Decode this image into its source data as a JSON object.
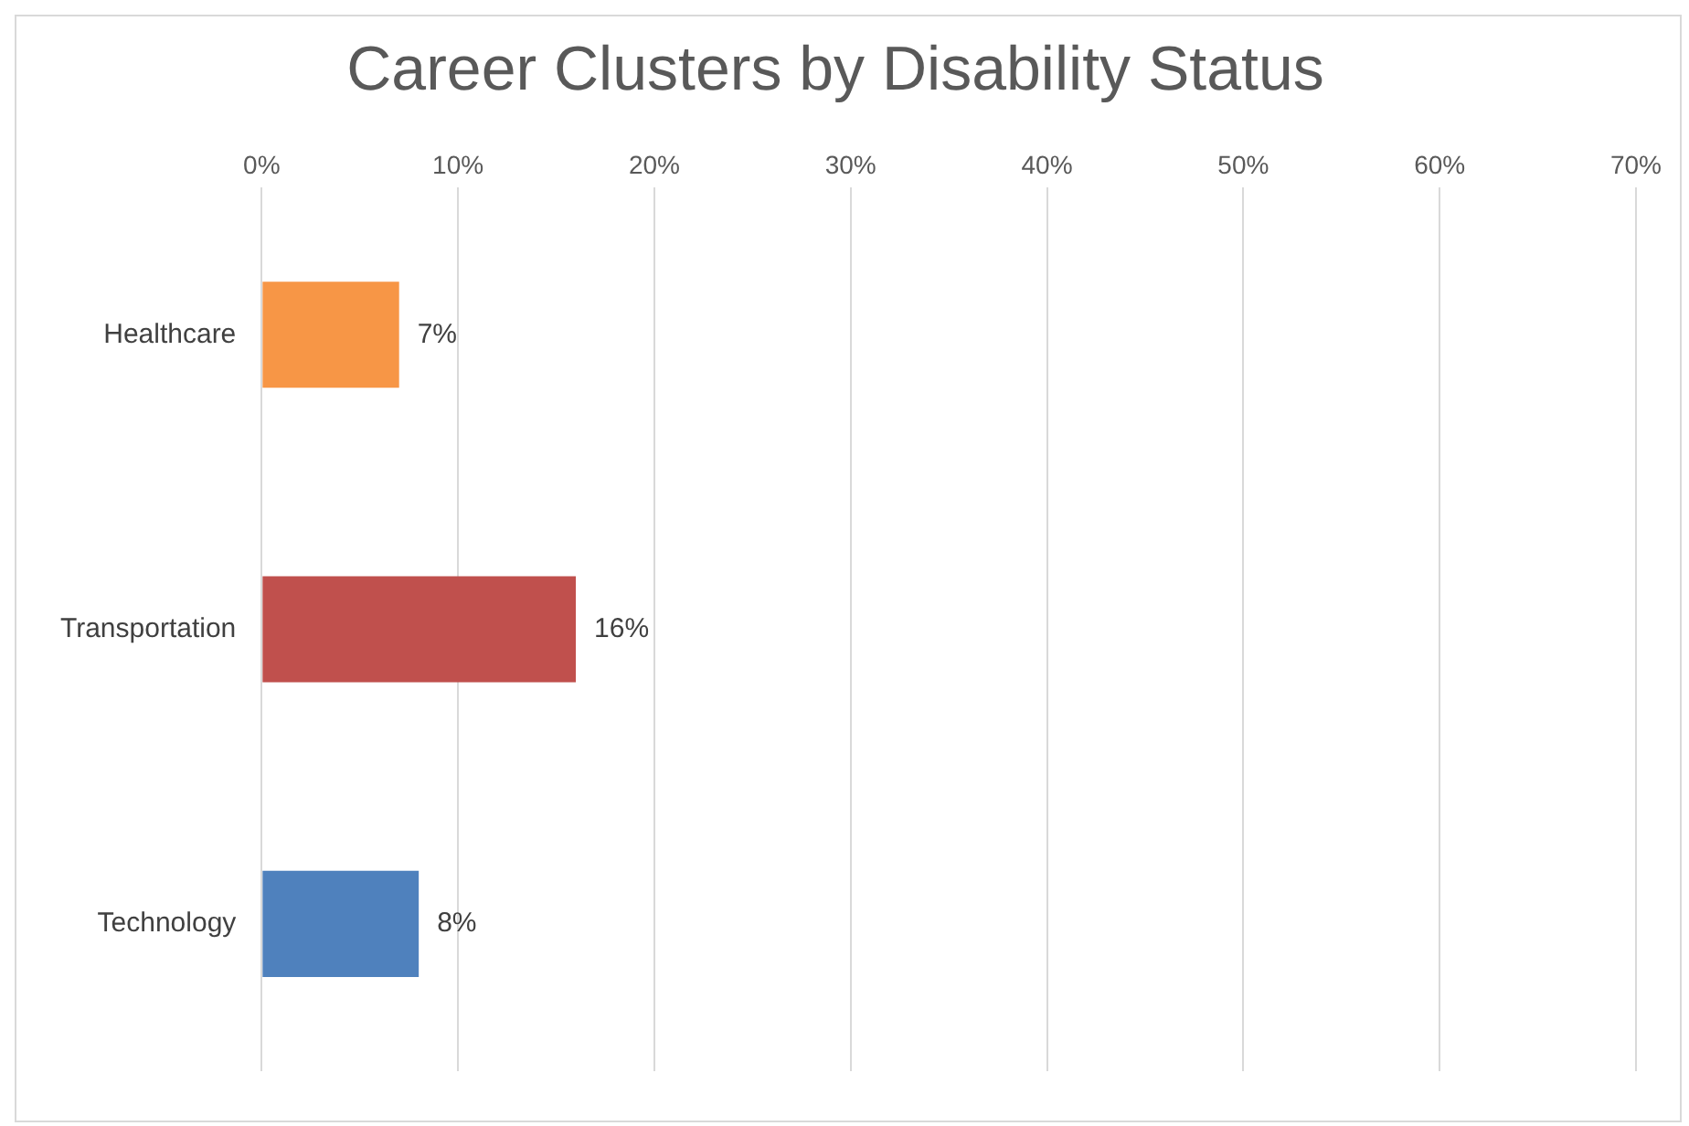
{
  "chart_data": {
    "type": "bar",
    "orientation": "horizontal",
    "title": "Career Clusters by Disability Status",
    "categories": [
      "Healthcare",
      "Transportation",
      "Technology"
    ],
    "values": [
      7,
      16,
      8
    ],
    "colors": [
      "#f79646",
      "#c0504d",
      "#4f81bd"
    ],
    "value_labels": [
      "7%",
      "16%",
      "8%"
    ],
    "xlim": [
      0,
      70
    ],
    "xticks": [
      {
        "value": 0,
        "label": "0%"
      },
      {
        "value": 10,
        "label": "10%"
      },
      {
        "value": 20,
        "label": "20%"
      },
      {
        "value": 30,
        "label": "30%"
      },
      {
        "value": 40,
        "label": "40%"
      },
      {
        "value": 50,
        "label": "50%"
      },
      {
        "value": 60,
        "label": "60%"
      },
      {
        "value": 70,
        "label": "70%"
      }
    ],
    "grid": "x",
    "legend": false
  }
}
